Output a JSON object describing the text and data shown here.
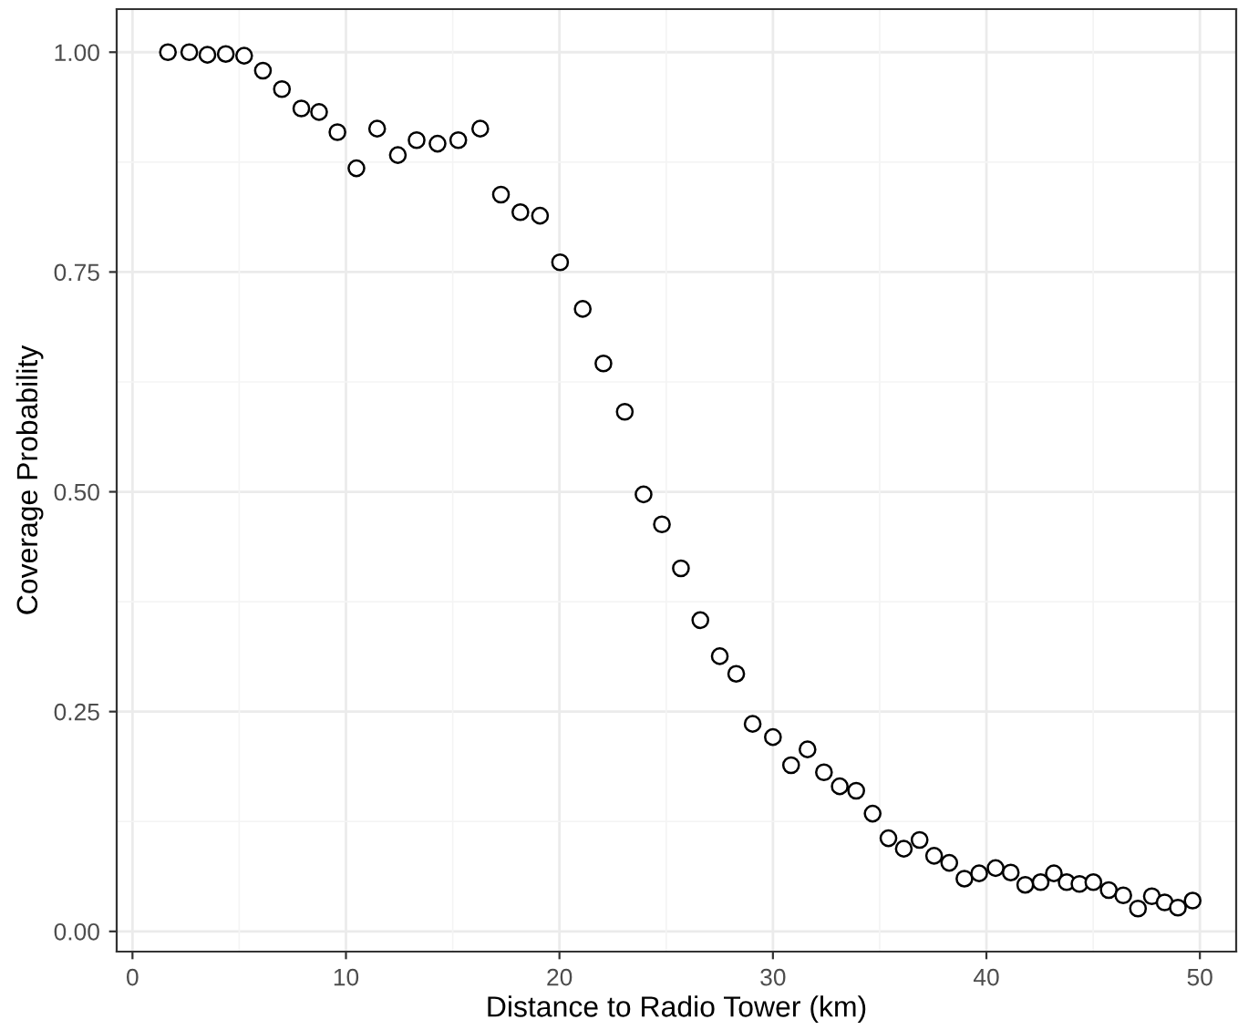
{
  "chart_data": {
    "type": "scatter",
    "xlabel": "Distance to Radio Tower (km)",
    "ylabel": "Coverage Probability",
    "x": [
      1.66,
      2.66,
      3.51,
      4.37,
      5.23,
      6.11,
      7.0,
      7.91,
      8.74,
      9.6,
      10.49,
      11.46,
      12.43,
      13.31,
      14.29,
      15.26,
      16.29,
      17.26,
      18.17,
      19.09,
      20.03,
      21.09,
      22.06,
      23.06,
      23.94,
      24.8,
      25.69,
      26.6,
      27.51,
      28.28,
      29.05,
      30.0,
      30.85,
      31.62,
      32.39,
      33.13,
      33.9,
      34.67,
      35.41,
      36.13,
      36.87,
      37.55,
      38.26,
      38.97,
      39.66,
      40.43,
      41.14,
      41.82,
      42.54,
      43.16,
      43.76,
      44.36,
      45.01,
      45.73,
      46.41,
      47.1,
      47.75,
      48.35,
      48.97,
      49.66
    ],
    "values": [
      1.0,
      1.0,
      0.997,
      0.998,
      0.996,
      0.979,
      0.958,
      0.936,
      0.932,
      0.909,
      0.868,
      0.913,
      0.883,
      0.9,
      0.896,
      0.9,
      0.913,
      0.838,
      0.818,
      0.814,
      0.761,
      0.708,
      0.646,
      0.591,
      0.497,
      0.463,
      0.413,
      0.354,
      0.313,
      0.293,
      0.236,
      0.221,
      0.189,
      0.207,
      0.181,
      0.165,
      0.16,
      0.134,
      0.106,
      0.094,
      0.104,
      0.086,
      0.078,
      0.06,
      0.066,
      0.072,
      0.067,
      0.053,
      0.056,
      0.066,
      0.056,
      0.054,
      0.056,
      0.047,
      0.041,
      0.026,
      0.04,
      0.033,
      0.027,
      0.035
    ],
    "color": "#000000",
    "marker": "circle",
    "xlim": [
      -0.74,
      51.7
    ],
    "ylim": [
      -0.023,
      1.049
    ],
    "xticks": [
      0,
      10,
      20,
      30,
      40,
      50
    ],
    "yticks": [
      {
        "value": 0,
        "label": "0.00"
      },
      {
        "value": 0.25,
        "label": "0.25"
      },
      {
        "value": 0.5,
        "label": "0.50"
      },
      {
        "value": 0.75,
        "label": "0.75"
      },
      {
        "value": 1.0,
        "label": "1.00"
      }
    ],
    "grid": true
  }
}
